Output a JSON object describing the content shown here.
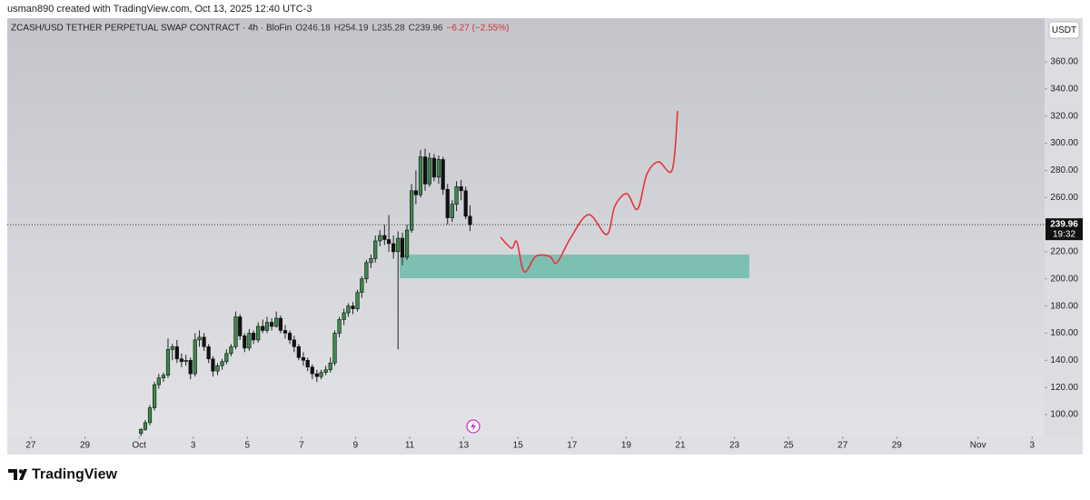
{
  "top_bar": "usman890 created with TradingView.com, Oct 13, 2025 12:40 UTC-3",
  "footer": "TradingView",
  "currency_button": "USDT",
  "chart_data": {
    "type": "candlestick",
    "header": [
      "ZCASH/USD TETHER PERPETUAL SWAP CONTRACT · 4h · BloFin",
      "O246.18",
      "H254.19",
      "L235.28",
      "C239.96",
      "−6.27 (−2.55%)"
    ],
    "price_label": "239.96",
    "countdown": "19:32",
    "up_color": "#3a8a4e",
    "down_color": "#111111",
    "x": [
      0.07,
      0.23,
      0.4,
      0.57,
      0.73,
      0.9,
      1.07,
      1.23,
      1.4,
      1.57,
      1.73,
      1.9,
      2.07,
      2.23,
      2.4,
      2.57,
      2.73,
      2.9,
      3.07,
      3.23,
      3.4,
      3.57,
      3.73,
      3.9,
      4.07,
      4.23,
      4.4,
      4.57,
      4.73,
      4.9,
      5.07,
      5.23,
      5.4,
      5.57,
      5.73,
      5.9,
      6.07,
      6.23,
      6.4,
      6.57,
      6.73,
      6.9,
      7.07,
      7.23,
      7.4,
      7.57,
      7.73,
      7.9,
      8.07,
      8.23,
      8.4,
      8.57,
      8.73,
      8.9,
      9.07,
      9.23,
      9.4,
      9.57,
      9.73,
      9.9,
      10.07,
      10.23,
      10.4,
      10.57,
      10.73,
      10.9,
      11.07,
      11.23,
      11.4,
      11.57,
      11.73,
      11.9,
      12.07,
      12.23
    ],
    "open": [
      86,
      89,
      94,
      105,
      122,
      127,
      129,
      148,
      150,
      141,
      139,
      140,
      130,
      155,
      157,
      150,
      141,
      132,
      136,
      139,
      145,
      150,
      172,
      158,
      149,
      160,
      155,
      165,
      162,
      168,
      165,
      171,
      162,
      160,
      155,
      150,
      142,
      140,
      135,
      130,
      128,
      131,
      133,
      138,
      160,
      170,
      175,
      180,
      178,
      190,
      200,
      212,
      215,
      228,
      232,
      229,
      226,
      220,
      230,
      216,
      236,
      265,
      262,
      290,
      270,
      289,
      275,
      288,
      266,
      245,
      255,
      268,
      265,
      246.18
    ],
    "high": [
      90,
      96,
      107,
      124,
      130,
      131,
      156,
      152,
      155,
      145,
      144,
      142,
      160,
      162,
      160,
      152,
      143,
      138,
      141,
      148,
      152,
      176,
      174,
      160,
      163,
      162,
      168,
      170,
      172,
      171,
      176,
      173,
      166,
      162,
      158,
      152,
      146,
      142,
      137,
      133,
      133,
      136,
      142,
      162,
      172,
      178,
      182,
      183,
      192,
      202,
      214,
      218,
      232,
      236,
      240,
      247,
      232,
      235,
      234,
      240,
      270,
      280,
      295,
      296,
      293,
      292,
      291,
      290,
      270,
      258,
      272,
      273,
      268,
      254.19
    ],
    "low": [
      84,
      88,
      92,
      103,
      119,
      124,
      127,
      140,
      138,
      135,
      136,
      126,
      128,
      150,
      147,
      138,
      128,
      129,
      133,
      137,
      143,
      148,
      155,
      146,
      147,
      152,
      153,
      160,
      160,
      162,
      164,
      160,
      156,
      152,
      146,
      140,
      136,
      132,
      126,
      124,
      126,
      129,
      131,
      136,
      157,
      166,
      172,
      174,
      176,
      186,
      197,
      208,
      212,
      224,
      225,
      220,
      215,
      148,
      210,
      214,
      234,
      255,
      260,
      265,
      268,
      272,
      270,
      262,
      240,
      242,
      250,
      258,
      244,
      235.28
    ],
    "close": [
      89,
      94,
      105,
      122,
      127,
      129,
      148,
      150,
      141,
      139,
      140,
      130,
      155,
      157,
      150,
      141,
      132,
      136,
      139,
      145,
      150,
      172,
      158,
      149,
      160,
      155,
      165,
      162,
      168,
      165,
      171,
      162,
      160,
      155,
      150,
      142,
      140,
      135,
      130,
      128,
      131,
      133,
      138,
      160,
      170,
      175,
      180,
      178,
      190,
      200,
      212,
      215,
      228,
      232,
      229,
      226,
      220,
      230,
      216,
      236,
      265,
      262,
      290,
      270,
      289,
      275,
      288,
      266,
      245,
      255,
      268,
      265,
      246.18,
      239.96
    ],
    "zone": {
      "x": [
        9.63,
        22.55
      ],
      "y": [
        200.5,
        217.9
      ],
      "color": "#6dbcaa"
    },
    "projection": {
      "color": "#e8343a",
      "x": [
        13.36,
        13.76,
        13.96,
        14.23,
        14.66,
        15.17,
        15.44,
        15.94,
        16.61,
        17.28,
        17.58,
        18.02,
        18.42,
        18.76,
        19.19,
        19.7,
        19.9
      ],
      "values": [
        230.7,
        222.6,
        227.3,
        205.2,
        216.6,
        216.6,
        211.9,
        230.0,
        247.4,
        232.7,
        253.5,
        262.8,
        251.4,
        276.9,
        286.3,
        280.3,
        323.8
      ]
    },
    "xlim": [
      -4.87,
      33.46
    ],
    "ylim": [
      83.9,
      392.2
    ],
    "xticks": [
      {
        "value": -4,
        "label": "27"
      },
      {
        "value": -2,
        "label": "29"
      },
      {
        "value": 0,
        "label": "Oct"
      },
      {
        "value": 2,
        "label": "3"
      },
      {
        "value": 4,
        "label": "5"
      },
      {
        "value": 6,
        "label": "7"
      },
      {
        "value": 8,
        "label": "9"
      },
      {
        "value": 10,
        "label": "11"
      },
      {
        "value": 12,
        "label": "13"
      },
      {
        "value": 14,
        "label": "15"
      },
      {
        "value": 16,
        "label": "17"
      },
      {
        "value": 18,
        "label": "19"
      },
      {
        "value": 20,
        "label": "21"
      },
      {
        "value": 22,
        "label": "23"
      },
      {
        "value": 24,
        "label": "25"
      },
      {
        "value": 26,
        "label": "27"
      },
      {
        "value": 28,
        "label": "29"
      },
      {
        "value": 31,
        "label": "Nov"
      },
      {
        "value": 33,
        "label": "3"
      }
    ],
    "yticks": [
      {
        "value": 100,
        "label": "100.00"
      },
      {
        "value": 120,
        "label": "120.00"
      },
      {
        "value": 140,
        "label": "140.00"
      },
      {
        "value": 160,
        "label": "160.00"
      },
      {
        "value": 180,
        "label": "180.00"
      },
      {
        "value": 200,
        "label": "200.00"
      },
      {
        "value": 220,
        "label": "220.00"
      },
      {
        "value": 240,
        "label": "240.00"
      },
      {
        "value": 260,
        "label": "260.00"
      },
      {
        "value": 280,
        "label": "280.00"
      },
      {
        "value": 300,
        "label": "300.00"
      },
      {
        "value": 320,
        "label": "320.00"
      },
      {
        "value": 340,
        "label": "340.00"
      },
      {
        "value": 360,
        "label": "360.00"
      }
    ]
  }
}
